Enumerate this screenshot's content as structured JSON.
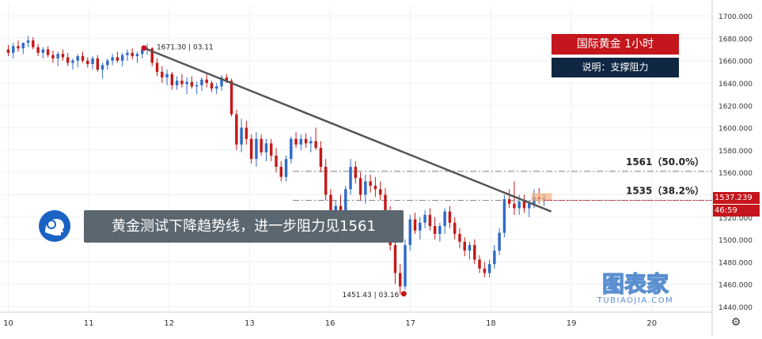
{
  "chart_data": {
    "type": "candlestick",
    "title": "国际黄金  1小时",
    "subtitle": "说明：支撑阻力",
    "banner": "黄金测试下降趋势线，进一步阻力见1561",
    "y_ticks": [
      "1700.000",
      "1680.000",
      "1660.000",
      "1640.000",
      "1620.000",
      "1600.000",
      "1580.000",
      "1560.000",
      "1540.000",
      "1520.000",
      "1500.000",
      "1480.000",
      "1460.000",
      "1440.000"
    ],
    "ylim": [
      1435,
      1710
    ],
    "x_ticks": [
      {
        "label": "10",
        "t": 0
      },
      {
        "label": "11",
        "t": 24
      },
      {
        "label": "12",
        "t": 48
      },
      {
        "label": "13",
        "t": 72
      },
      {
        "label": "16",
        "t": 96
      },
      {
        "label": "17",
        "t": 120
      },
      {
        "label": "18",
        "t": 144
      },
      {
        "label": "19",
        "t": 168
      },
      {
        "label": "20",
        "t": 192
      }
    ],
    "xlim": [
      -2,
      210
    ],
    "candles": [
      [
        1670,
        1674,
        1664,
        1667
      ],
      [
        1667,
        1676,
        1662,
        1673
      ],
      [
        1673,
        1678,
        1668,
        1671
      ],
      [
        1671,
        1675,
        1666,
        1676
      ],
      [
        1676,
        1682,
        1672,
        1678
      ],
      [
        1678,
        1681,
        1670,
        1672
      ],
      [
        1672,
        1675,
        1664,
        1667
      ],
      [
        1667,
        1672,
        1662,
        1670
      ],
      [
        1670,
        1673,
        1663,
        1665
      ],
      [
        1665,
        1669,
        1658,
        1662
      ],
      [
        1662,
        1668,
        1655,
        1666
      ],
      [
        1666,
        1670,
        1660,
        1663
      ],
      [
        1663,
        1667,
        1655,
        1658
      ],
      [
        1658,
        1662,
        1652,
        1660
      ],
      [
        1660,
        1666,
        1654,
        1664
      ],
      [
        1664,
        1668,
        1658,
        1660
      ],
      [
        1660,
        1663,
        1654,
        1657
      ],
      [
        1657,
        1664,
        1652,
        1662
      ],
      [
        1662,
        1665,
        1650,
        1652
      ],
      [
        1652,
        1658,
        1644,
        1656
      ],
      [
        1656,
        1662,
        1652,
        1660
      ],
      [
        1660,
        1666,
        1656,
        1663
      ],
      [
        1663,
        1668,
        1658,
        1660
      ],
      [
        1660,
        1667,
        1655,
        1665
      ],
      [
        1665,
        1670,
        1660,
        1667
      ],
      [
        1667,
        1671,
        1661,
        1664
      ],
      [
        1664,
        1668,
        1658,
        1666
      ],
      [
        1666,
        1672,
        1662,
        1670
      ],
      [
        1670,
        1675,
        1665,
        1671
      ],
      [
        1671,
        1672,
        1655,
        1658
      ],
      [
        1658,
        1662,
        1646,
        1650
      ],
      [
        1650,
        1655,
        1640,
        1645
      ],
      [
        1645,
        1652,
        1638,
        1648
      ],
      [
        1648,
        1650,
        1634,
        1638
      ],
      [
        1638,
        1646,
        1634,
        1642
      ],
      [
        1642,
        1648,
        1636,
        1639
      ],
      [
        1639,
        1645,
        1630,
        1641
      ],
      [
        1641,
        1646,
        1635,
        1637
      ],
      [
        1637,
        1641,
        1630,
        1638
      ],
      [
        1638,
        1645,
        1633,
        1643
      ],
      [
        1643,
        1648,
        1636,
        1640
      ],
      [
        1640,
        1642,
        1632,
        1635
      ],
      [
        1635,
        1640,
        1630,
        1637
      ],
      [
        1637,
        1647,
        1633,
        1645
      ],
      [
        1645,
        1648,
        1640,
        1642
      ],
      [
        1642,
        1644,
        1610,
        1612
      ],
      [
        1612,
        1616,
        1580,
        1585
      ],
      [
        1585,
        1608,
        1578,
        1600
      ],
      [
        1600,
        1606,
        1585,
        1590
      ],
      [
        1590,
        1594,
        1568,
        1572
      ],
      [
        1572,
        1596,
        1565,
        1590
      ],
      [
        1590,
        1594,
        1575,
        1578
      ],
      [
        1578,
        1590,
        1570,
        1586
      ],
      [
        1586,
        1590,
        1570,
        1575
      ],
      [
        1575,
        1582,
        1560,
        1565
      ],
      [
        1565,
        1570,
        1552,
        1556
      ],
      [
        1556,
        1575,
        1552,
        1572
      ],
      [
        1572,
        1592,
        1568,
        1590
      ],
      [
        1590,
        1596,
        1582,
        1585
      ],
      [
        1585,
        1594,
        1580,
        1590
      ],
      [
        1590,
        1595,
        1582,
        1586
      ],
      [
        1586,
        1592,
        1578,
        1588
      ],
      [
        1588,
        1600,
        1580,
        1582
      ],
      [
        1582,
        1588,
        1560,
        1565
      ],
      [
        1565,
        1572,
        1535,
        1540
      ],
      [
        1540,
        1545,
        1518,
        1522
      ],
      [
        1522,
        1535,
        1515,
        1530
      ],
      [
        1530,
        1540,
        1520,
        1525
      ],
      [
        1525,
        1548,
        1520,
        1545
      ],
      [
        1545,
        1572,
        1540,
        1565
      ],
      [
        1565,
        1570,
        1550,
        1555
      ],
      [
        1555,
        1560,
        1535,
        1540
      ],
      [
        1540,
        1558,
        1532,
        1552
      ],
      [
        1552,
        1558,
        1542,
        1548
      ],
      [
        1548,
        1556,
        1538,
        1545
      ],
      [
        1545,
        1552,
        1535,
        1540
      ],
      [
        1540,
        1546,
        1520,
        1525
      ],
      [
        1525,
        1530,
        1490,
        1495
      ],
      [
        1495,
        1500,
        1460,
        1470
      ],
      [
        1470,
        1478,
        1451,
        1458
      ],
      [
        1458,
        1500,
        1455,
        1495
      ],
      [
        1495,
        1522,
        1490,
        1518
      ],
      [
        1518,
        1524,
        1505,
        1508
      ],
      [
        1508,
        1520,
        1500,
        1515
      ],
      [
        1515,
        1526,
        1510,
        1522
      ],
      [
        1522,
        1528,
        1508,
        1512
      ],
      [
        1512,
        1520,
        1500,
        1505
      ],
      [
        1505,
        1515,
        1498,
        1512
      ],
      [
        1512,
        1528,
        1505,
        1525
      ],
      [
        1525,
        1530,
        1510,
        1515
      ],
      [
        1515,
        1520,
        1500,
        1505
      ],
      [
        1505,
        1510,
        1492,
        1498
      ],
      [
        1498,
        1502,
        1485,
        1490
      ],
      [
        1490,
        1498,
        1482,
        1495
      ],
      [
        1495,
        1500,
        1478,
        1482
      ],
      [
        1482,
        1486,
        1470,
        1474
      ],
      [
        1474,
        1480,
        1466,
        1470
      ],
      [
        1470,
        1482,
        1466,
        1478
      ],
      [
        1478,
        1495,
        1474,
        1490
      ],
      [
        1490,
        1510,
        1486,
        1506
      ],
      [
        1506,
        1540,
        1502,
        1536
      ],
      [
        1536,
        1545,
        1528,
        1532
      ],
      [
        1532,
        1552,
        1522,
        1528
      ],
      [
        1528,
        1540,
        1522,
        1534
      ],
      [
        1534,
        1540,
        1524,
        1528
      ],
      [
        1528,
        1535,
        1520,
        1532
      ],
      [
        1532,
        1545,
        1528,
        1538
      ],
      [
        1538,
        1546,
        1532,
        1536
      ],
      [
        1536,
        1541,
        1530,
        1537.239
      ]
    ],
    "candle_x_start": 0,
    "candle_x_step": 1.48,
    "trendline": {
      "from": [
        40.5,
        1671.3
      ],
      "to": [
        162,
        1525
      ]
    },
    "h_levels": [
      {
        "value": 1561,
        "label": "1561（50.0%）"
      },
      {
        "value": 1535,
        "label": "1535（38.2%）"
      }
    ],
    "annotations": [
      {
        "text": "1671.30 | 03.11",
        "x": 40.5,
        "y": 1671.3
      },
      {
        "text": "1451.43 | 03.16",
        "x": 118,
        "y": 1451.43
      }
    ],
    "price_tag": {
      "value": "1537.239",
      "countdown": "46:59"
    },
    "colors": {
      "up": "#2f6bc7",
      "down": "#c41a1a",
      "trend": "#555555",
      "level": "#888888",
      "tag_up": "#c4161c",
      "tag_count": "#c4161c"
    }
  },
  "watermark": {
    "big": "图表家",
    "small": "TUBIAOJIA.COM"
  },
  "settings_icon": "gear-icon"
}
